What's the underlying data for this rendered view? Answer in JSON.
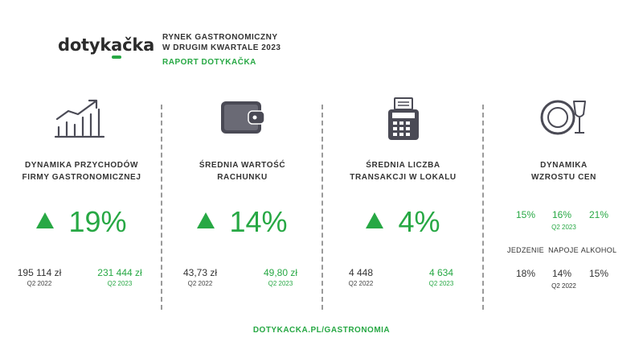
{
  "header": {
    "logo_text_pre": "dotyk",
    "logo_text_accent": "a",
    "logo_text_post": "čka",
    "report_line1": "RYNEK GASTRONOMICZNY",
    "report_line2": "W DRUGIM KWARTALE 2023",
    "report_line3": "RAPORT DOTYKAČKA"
  },
  "colors": {
    "accent": "#27a844",
    "text": "#333333",
    "divider": "#9a9a9a",
    "icon": "#4a4a55"
  },
  "columns": [
    {
      "icon": "growth-chart-icon",
      "title_line1": "DYNAMIKA PRZYCHODÓW",
      "title_line2": "FIRMY GASTRONOMICZNEJ",
      "change": "19%",
      "prev_value": "195 114 zł",
      "prev_label": "Q2 2022",
      "curr_value": "231 444 zł",
      "curr_label": "Q2 2023"
    },
    {
      "icon": "wallet-icon",
      "title_line1": "ŚREDNIA WARTOŚĆ",
      "title_line2": "RACHUNKU",
      "change": "14%",
      "prev_value": "43,73 zł",
      "prev_label": "Q2 2022",
      "curr_value": "49,80 zł",
      "curr_label": "Q2 2023"
    },
    {
      "icon": "cash-register-icon",
      "title_line1": "ŚREDNIA LICZBA",
      "title_line2": "TRANSAKCJI W LOKALU",
      "change": "4%",
      "prev_value": "4 448",
      "prev_label": "Q2 2022",
      "curr_value": "4 634",
      "curr_label": "Q2 2023"
    }
  ],
  "prices": {
    "icon": "plate-glass-icon",
    "title_line1": "DYNAMIKA",
    "title_line2": "WZROSTU CEN",
    "q2023_values": [
      "15%",
      "16%",
      "21%"
    ],
    "q2023_label": "Q2 2023",
    "categories": [
      "JEDZENIE",
      "NAPOJE",
      "ALKOHOL"
    ],
    "q2022_values": [
      "18%",
      "14%",
      "15%"
    ],
    "q2022_label": "Q2 2022"
  },
  "footer": {
    "url": "DOTYKACKA.PL/GASTRONOMIA"
  }
}
